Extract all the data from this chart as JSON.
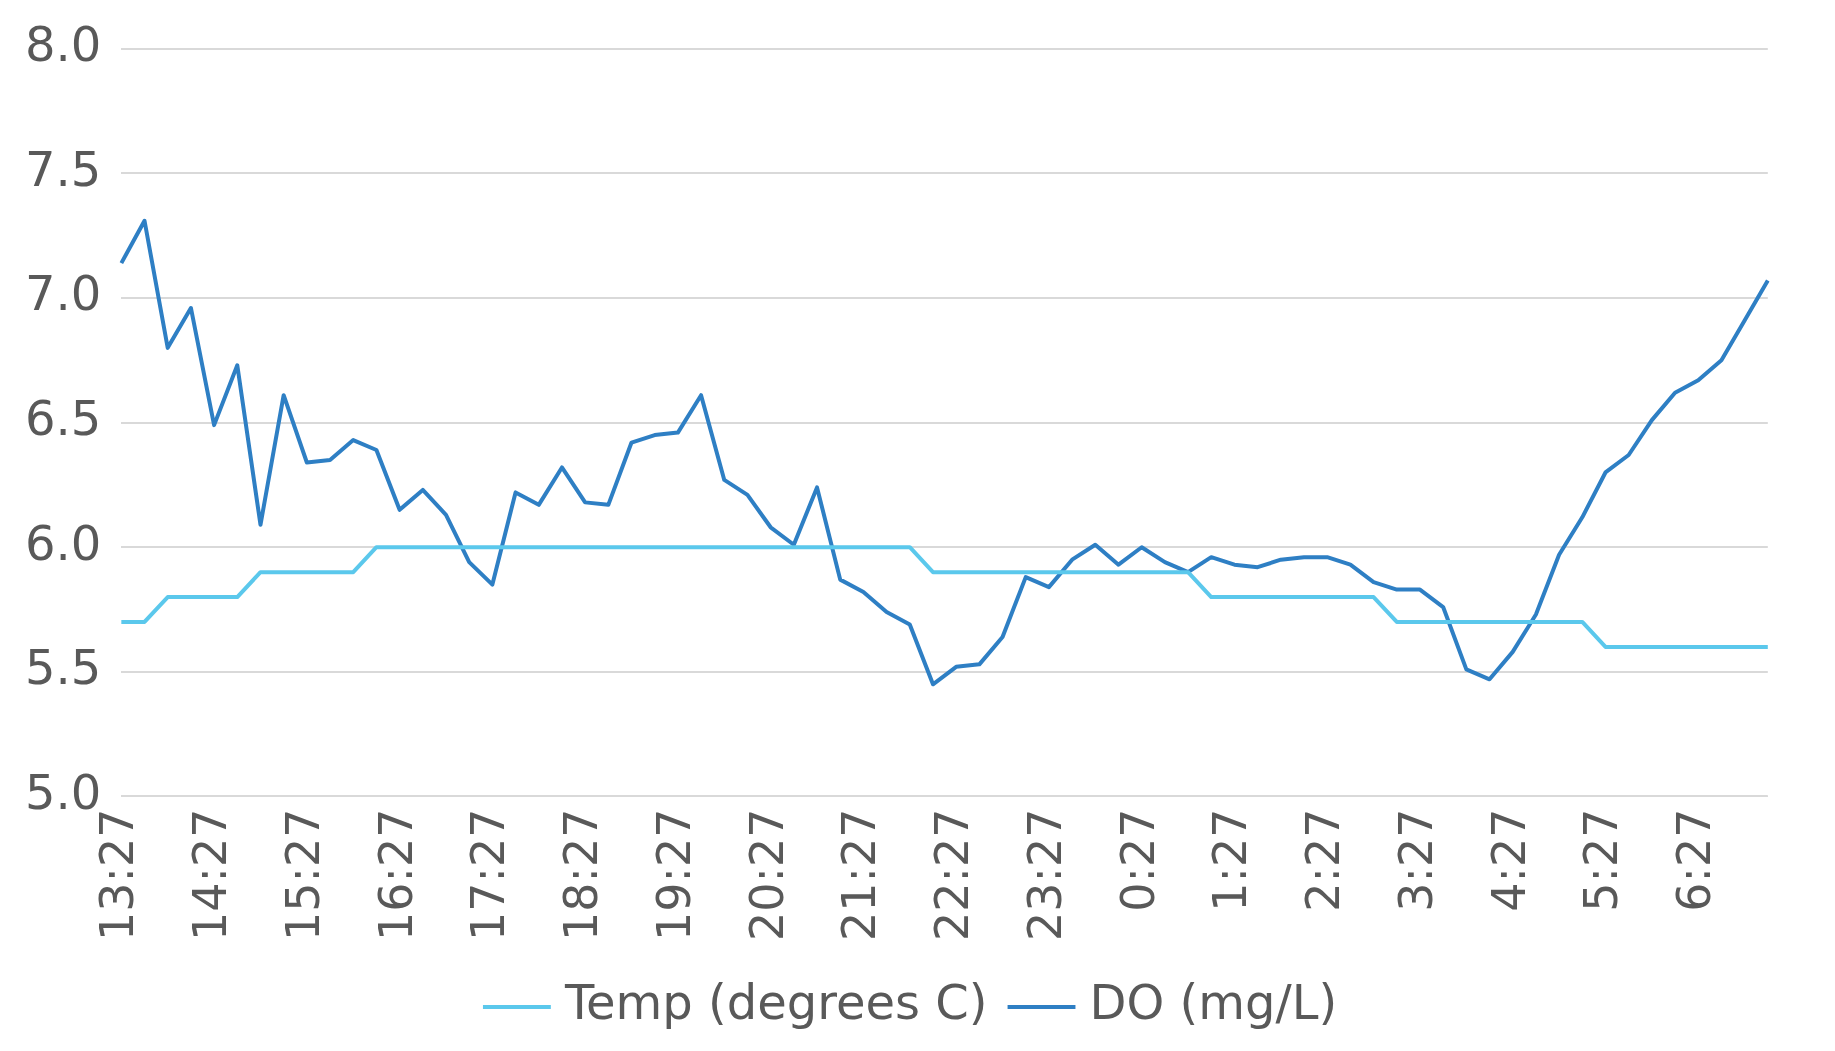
{
  "chart_data": {
    "type": "line",
    "categories": [
      "13:27",
      null,
      null,
      null,
      "14:27",
      null,
      null,
      null,
      "15:27",
      null,
      null,
      null,
      "16:27",
      null,
      null,
      null,
      "17:27",
      null,
      null,
      null,
      "18:27",
      null,
      null,
      null,
      "19:27",
      null,
      null,
      null,
      "20:27",
      null,
      null,
      null,
      "21:27",
      null,
      null,
      null,
      "22:27",
      null,
      null,
      null,
      "23:27",
      null,
      null,
      null,
      "0:27",
      null,
      null,
      null,
      "1:27",
      null,
      null,
      null,
      "2:27",
      null,
      null,
      null,
      "3:27",
      null,
      null,
      null,
      "4:27",
      null,
      null,
      null,
      "5:27",
      null,
      null,
      null,
      "6:27",
      null,
      null,
      null
    ],
    "series": [
      {
        "name": "Temp (degrees C)",
        "color": "#5bc8ec",
        "values": [
          5.7,
          5.7,
          5.8,
          5.8,
          5.8,
          5.8,
          5.9,
          5.9,
          5.9,
          5.9,
          5.9,
          6.0,
          6.0,
          6.0,
          6.0,
          6.0,
          6.0,
          6.0,
          6.0,
          6.0,
          6.0,
          6.0,
          6.0,
          6.0,
          6.0,
          6.0,
          6.0,
          6.0,
          6.0,
          6.0,
          6.0,
          6.0,
          6.0,
          6.0,
          6.0,
          5.9,
          5.9,
          5.9,
          5.9,
          5.9,
          5.9,
          5.9,
          5.9,
          5.9,
          5.9,
          5.9,
          5.9,
          5.8,
          5.8,
          5.8,
          5.8,
          5.8,
          5.8,
          5.8,
          5.8,
          5.7,
          5.7,
          5.7,
          5.7,
          5.7,
          5.7,
          5.7,
          5.7,
          5.7,
          5.6,
          5.6,
          5.6,
          5.6,
          5.6,
          5.6,
          5.6,
          5.6
        ]
      },
      {
        "name": "DO (mg/L)",
        "color": "#2e7fc4",
        "values": [
          7.14,
          7.31,
          6.8,
          6.96,
          6.49,
          6.73,
          6.09,
          6.61,
          6.34,
          6.35,
          6.43,
          6.39,
          6.15,
          6.23,
          6.13,
          5.94,
          5.85,
          6.22,
          6.17,
          6.32,
          6.18,
          6.17,
          6.42,
          6.45,
          6.46,
          6.61,
          6.27,
          6.21,
          6.08,
          6.01,
          6.24,
          5.87,
          5.82,
          5.74,
          5.69,
          5.45,
          5.52,
          5.53,
          5.64,
          5.88,
          5.84,
          5.95,
          6.01,
          5.93,
          6.0,
          5.94,
          5.9,
          5.96,
          5.93,
          5.92,
          5.95,
          5.96,
          5.96,
          5.93,
          5.86,
          5.83,
          5.83,
          5.76,
          5.51,
          5.47,
          5.58,
          5.73,
          5.97,
          6.12,
          6.3,
          6.37,
          6.51,
          6.62,
          6.67,
          6.75,
          6.91,
          7.07
        ]
      }
    ],
    "ylim": [
      5.0,
      8.0
    ],
    "yticks": [
      {
        "value": 5.0,
        "label": "5.0"
      },
      {
        "value": 5.5,
        "label": "5.5"
      },
      {
        "value": 6.0,
        "label": "6.0"
      },
      {
        "value": 6.5,
        "label": "6.5"
      },
      {
        "value": 7.0,
        "label": "7.0"
      },
      {
        "value": 7.5,
        "label": "7.5"
      },
      {
        "value": 8.0,
        "label": "8.0"
      }
    ],
    "grid": "y",
    "legend": "bottom",
    "marker": "none",
    "line_style": "solid"
  }
}
